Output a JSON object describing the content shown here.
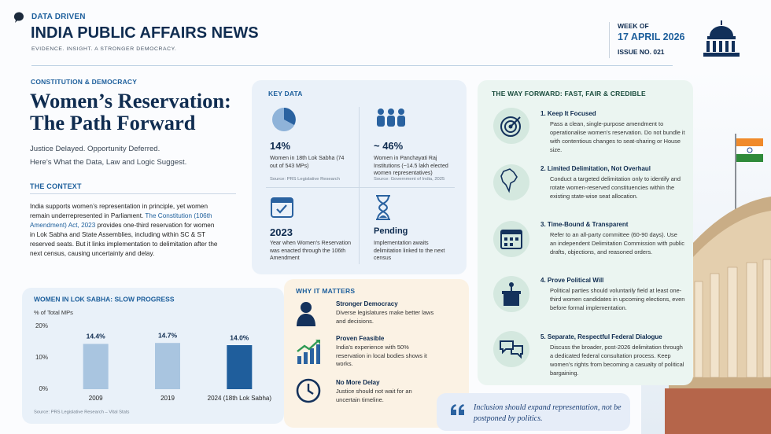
{
  "header": {
    "brand": "DATA DRIVEN",
    "title": "INDIA PUBLIC AFFAIRS NEWS",
    "tagline": "EVIDENCE. INSIGHT. A STRONGER DEMOCRACY.",
    "week_label": "WEEK OF",
    "date": "17 APRIL 2026",
    "issue": "ISSUE NO. 021"
  },
  "article": {
    "kicker": "CONSTITUTION & DEMOCRACY",
    "title_lines": [
      "Women’s Reservation:",
      "The Path Forward"
    ],
    "subtitle_lines": [
      "Justice Delayed. Opportunity Deferred.",
      "Here’s What the Data, Law and Logic Suggest."
    ]
  },
  "context": {
    "heading": "THE CONTEXT",
    "text_before": "India supports women’s representation in principle, yet women remain underrepresented in Parliament.",
    "link": "The Constitution (106th Amendment) Act, 2023",
    "text_after": "provides one-third reservation for women in Lok Sabha and State Assemblies, including within SC & ST reserved seats. But it links implementation to delimitation after the next census, causing uncertainty and delay."
  },
  "chart_data": {
    "type": "bar",
    "title": "WOMEN IN LOK SABHA: SLOW PROGRESS",
    "y_label": "% of Total MPs",
    "categories": [
      "2009",
      "2019",
      "2024 (18th Lok Sabha)"
    ],
    "values": [
      14.4,
      14.7,
      14.0
    ],
    "value_labels": [
      "14.4%",
      "14.7%",
      "14.0%"
    ],
    "colors": [
      "#a9c5e0",
      "#a9c5e0",
      "#1f5e9c"
    ],
    "ylim": [
      0,
      20
    ],
    "yticks": [
      {
        "value": 0,
        "label": "0%"
      },
      {
        "value": 10,
        "label": "10%"
      },
      {
        "value": 20,
        "label": "20%"
      }
    ],
    "grid": false,
    "source": "Source: PRS Legislative Research – Vital Stats"
  },
  "key_data": {
    "heading": "KEY DATA",
    "items": [
      {
        "value": "14%",
        "description": "Women in 18th Lok Sabha (74 out of 543 MPs)",
        "source": "Source: PRS Legislative Research"
      },
      {
        "value": "~ 46%",
        "description": "Women in Panchayati Raj Institutions (~14.5 lakh elected women representatives)",
        "source": "Source: Government of India, 2025"
      },
      {
        "value": "2023",
        "description": "Year when Women’s Reservation was enacted through the 106th Amendment"
      },
      {
        "value": "Pending",
        "description": "Implementation awaits delimitation linked to the next census"
      }
    ]
  },
  "why_it_matters": {
    "heading": "WHY IT MATTERS",
    "items": [
      {
        "title": "Stronger Democracy",
        "text": "Diverse legislatures make better laws and decisions."
      },
      {
        "title": "Proven Feasible",
        "text": "India’s experience with 50% reservation in local bodies shows it works."
      },
      {
        "title": "No More Delay",
        "text": "Justice should not wait for an uncertain timeline."
      }
    ]
  },
  "way_forward": {
    "heading": "THE WAY FORWARD: FAST, FAIR & CREDIBLE",
    "items": [
      {
        "title": "1.  Keep It Focused",
        "text": "Pass a clean, single-purpose amendment to operationalise women’s reservation. Do not bundle it with contentious changes to seat-sharing or House size."
      },
      {
        "title": "2.  Limited Delimitation, Not Overhaul",
        "text": "Conduct a targeted delimitation only to identify and rotate women-reserved constituencies within the existing state-wise seat allocation."
      },
      {
        "title": "3.  Time-Bound & Transparent",
        "text": "Refer to an all-party committee (60-90 days). Use an independent Delimitation Commission with public drafts, objections, and reasoned orders."
      },
      {
        "title": "4.  Prove Political Will",
        "text": "Political parties should voluntarily field at least one-third women candidates in upcoming elections, even before formal implementation."
      },
      {
        "title": "5.  Separate, Respectful Federal Dialogue",
        "text": "Discuss the broader, post-2026 delimitation through a dedicated federal consultation process. Keep women’s rights from becoming a casualty of political bargaining."
      }
    ]
  },
  "quote": "Inclusion should expand representation, not be postponed by politics."
}
